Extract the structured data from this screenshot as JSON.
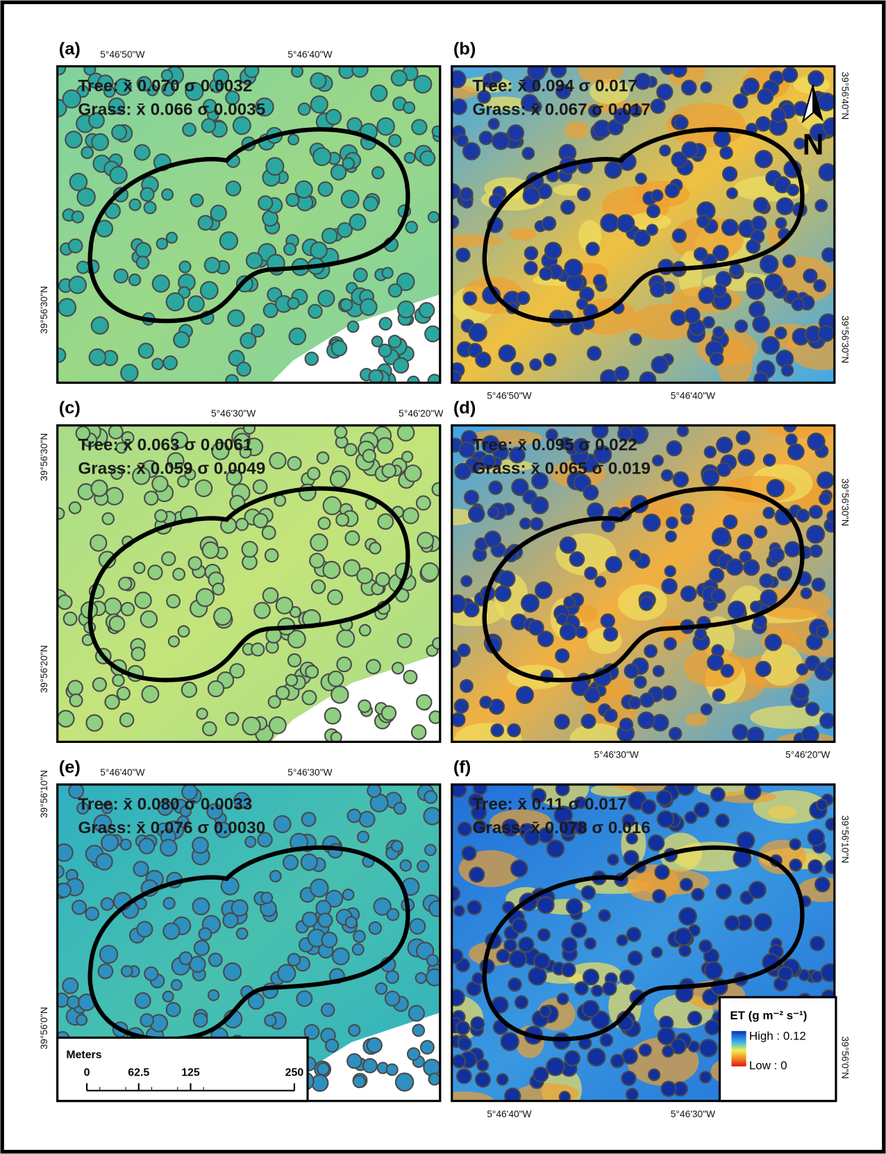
{
  "panels": [
    {
      "label": "(a)",
      "stats": [
        "Tree: x̄ 0.070 σ 0.0032",
        "Grass: x̄ 0.066 σ 0.0035"
      ],
      "top": [
        "5°46'50\"W",
        "5°46'40\"W"
      ],
      "left": [
        "39°56'30\"N"
      ]
    },
    {
      "label": "(b)",
      "stats": [
        "Tree: x̄ 0.094 σ 0.017",
        "Grass: x̄ 0.067 σ 0.017"
      ],
      "right": [
        "39°56'40\"N",
        "39°56'30\"N"
      ],
      "bottom": [
        "5°46'50\"W",
        "5°46'40\"W"
      ]
    },
    {
      "label": "(c)",
      "stats": [
        "Tree: x̄ 0.063 σ 0.0061",
        "Grass: x̄ 0.059 σ 0.0049"
      ],
      "top": [
        "5°46'30\"W",
        "5°46'20\"W"
      ],
      "left": [
        "39°56'30\"N",
        "39°56'20\"N"
      ]
    },
    {
      "label": "(d)",
      "stats": [
        "Tree: x̄ 0.095 σ 0.022",
        "Grass: x̄ 0.065 σ 0.019"
      ],
      "right": [
        "39°56'30\"N"
      ],
      "bottom": [
        "5°46'30\"W",
        "5°46'20\"W"
      ]
    },
    {
      "label": "(e)",
      "stats": [
        "Tree: x̄ 0.080 σ 0.0033",
        "Grass: x̄ 0.076 σ 0.0030"
      ],
      "top": [
        "5°46'40\"W",
        "5°46'30\"W"
      ],
      "left": [
        "39°56'10\"N",
        "39°56'0\"N"
      ]
    },
    {
      "label": "(f)",
      "stats": [
        "Tree: x̄ 0.11 σ 0.017",
        "Grass: x̄ 0.078 σ 0.016"
      ],
      "right": [
        "39°56'10\"N",
        "39°56'0\"N"
      ],
      "bottom": [
        "5°46'40\"W",
        "5°46'30\"W"
      ]
    }
  ],
  "north_arrow": {
    "label": "N"
  },
  "scale_bar": {
    "title": "Meters",
    "ticks": [
      0,
      62.5,
      125,
      250
    ]
  },
  "legend": {
    "title": "ET  (g m⁻² s⁻¹)",
    "high": "High : 0.12",
    "low": "Low : 0"
  }
}
